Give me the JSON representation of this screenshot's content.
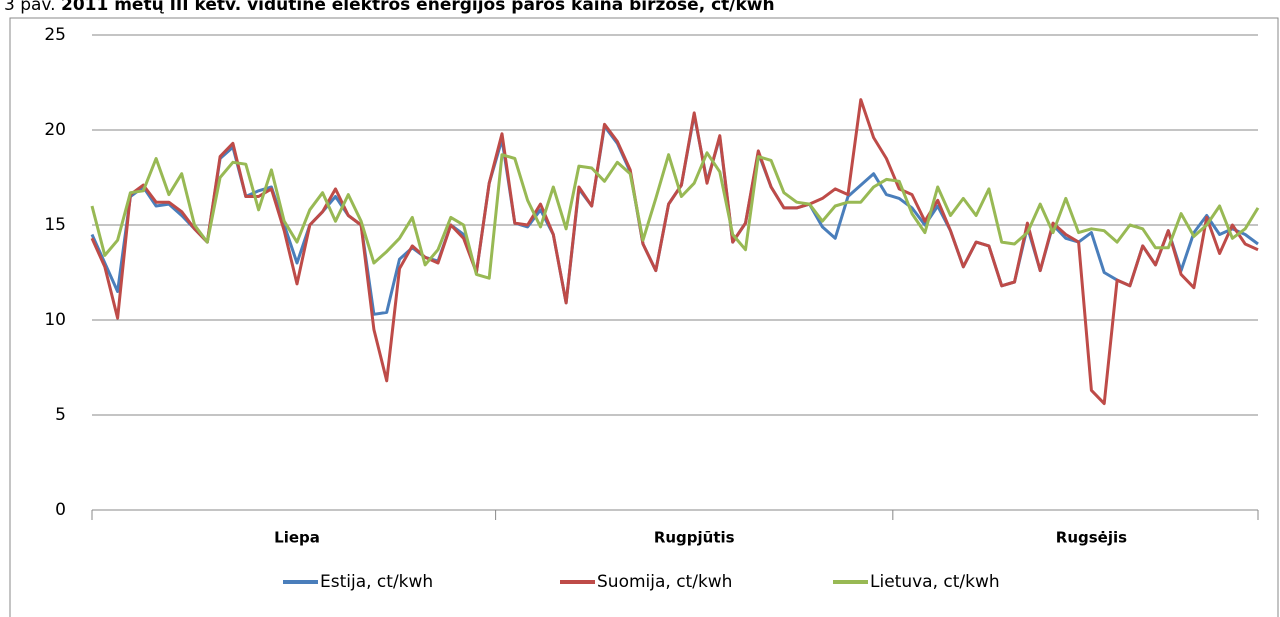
{
  "chart_data": {
    "type": "line",
    "figure_label": "3 pav.",
    "title": "2011 metų III ketv. vidutinė elektros energijos paros kaina biržose, ct/kwh",
    "categories": [
      null,
      null,
      null,
      null,
      null,
      null,
      null,
      null,
      null,
      null,
      null,
      null,
      null,
      null,
      null,
      null,
      "Liepa",
      null,
      null,
      null,
      null,
      null,
      null,
      null,
      null,
      null,
      null,
      null,
      null,
      null,
      null,
      null,
      null,
      null,
      null,
      null,
      null,
      null,
      null,
      null,
      null,
      null,
      null,
      null,
      null,
      null,
      null,
      "Rugpjūtis",
      null,
      null,
      null,
      null,
      null,
      null,
      null,
      null,
      null,
      null,
      null,
      null,
      null,
      null,
      null,
      null,
      null,
      null,
      null,
      null,
      null,
      null,
      null,
      null,
      null,
      null,
      null,
      null,
      null,
      null,
      "Rugsėjis",
      null,
      null,
      null,
      null,
      null,
      null,
      null,
      null,
      null,
      null,
      null,
      null,
      null
    ],
    "series": [
      {
        "name": "Estija, ct/kwh",
        "color": "#4a7ebb",
        "values": [
          14.5,
          13,
          11.5,
          16.5,
          17,
          16,
          16.1,
          15.5,
          14.8,
          14.1,
          18.5,
          19.1,
          16.5,
          16.8,
          17,
          15,
          13,
          15,
          15.7,
          16.5,
          15.5,
          15,
          10.3,
          10.4,
          13.2,
          13.8,
          13.3,
          13.1,
          15,
          14.5,
          12.5,
          17.2,
          19.5,
          15.1,
          14.9,
          15.8,
          14.5,
          10.9,
          16.9,
          16,
          20.2,
          19.3,
          17.8,
          14,
          12.6,
          16.1,
          17.1,
          20.8,
          17.3,
          19.6,
          14.1,
          15.1,
          18.8,
          17,
          15.9,
          15.9,
          16.1,
          14.9,
          14.3,
          16.5,
          17.1,
          17.7,
          16.6,
          16.4,
          15.9,
          15,
          16,
          14.7,
          12.8,
          14.1,
          13.9,
          11.8,
          12,
          14.9,
          12.6,
          15,
          14.3,
          14.1,
          14.6,
          12.5,
          12.1,
          11.8,
          13.9,
          12.9,
          14.7,
          12.6,
          14.6,
          15.5,
          14.5,
          14.8,
          14.5,
          14
        ]
      },
      {
        "name": "Suomija, ct/kwh",
        "color": "#be4b48",
        "values": [
          14.3,
          12.8,
          10.1,
          16.6,
          17.1,
          16.2,
          16.2,
          15.7,
          14.8,
          14.1,
          18.6,
          19.3,
          16.5,
          16.5,
          16.9,
          14.7,
          11.9,
          15,
          15.7,
          16.9,
          15.5,
          15,
          9.5,
          6.8,
          12.7,
          13.9,
          13.3,
          13,
          15,
          14.3,
          12.5,
          17.2,
          19.8,
          15.1,
          15,
          16.1,
          14.5,
          10.9,
          17,
          16,
          20.3,
          19.4,
          17.9,
          14,
          12.6,
          16.1,
          17.1,
          20.9,
          17.2,
          19.7,
          14.1,
          15.1,
          18.9,
          17,
          15.9,
          15.9,
          16.1,
          16.4,
          16.9,
          16.6,
          21.6,
          19.6,
          18.5,
          16.9,
          16.6,
          15.2,
          16.3,
          14.7,
          12.8,
          14.1,
          13.9,
          11.8,
          12,
          15.1,
          12.6,
          15.1,
          14.5,
          14.1,
          6.3,
          5.6,
          12.1,
          11.8,
          13.9,
          12.9,
          14.7,
          12.4,
          11.7,
          15.4,
          13.5,
          15,
          14,
          13.7
        ]
      },
      {
        "name": "Lietuva, ct/kwh",
        "color": "#98b954",
        "values": [
          16,
          13.4,
          14.2,
          16.7,
          16.8,
          18.5,
          16.6,
          17.7,
          15,
          14.1,
          17.5,
          18.3,
          18.2,
          15.8,
          17.9,
          15.2,
          14.1,
          15.8,
          16.7,
          15.2,
          16.6,
          15.2,
          13,
          13.6,
          14.3,
          15.4,
          12.9,
          13.7,
          15.4,
          15,
          12.4,
          12.2,
          18.7,
          18.5,
          16.3,
          14.9,
          17,
          14.8,
          18.1,
          18,
          17.3,
          18.3,
          17.7,
          14.2,
          16.4,
          18.7,
          16.5,
          17.2,
          18.8,
          17.8,
          14.5,
          13.7,
          18.6,
          18.4,
          16.7,
          16.2,
          16.1,
          15.2,
          16,
          16.2,
          16.2,
          17,
          17.4,
          17.3,
          15.6,
          14.6,
          17,
          15.5,
          16.4,
          15.5,
          16.9,
          14.1,
          14,
          14.6,
          16.1,
          14.6,
          16.4,
          14.6,
          14.8,
          14.7,
          14.1,
          15,
          14.8,
          13.8,
          13.8,
          15.6,
          14.4,
          15,
          16,
          14.3,
          14.8,
          15.9
        ]
      }
    ],
    "ylim": [
      0,
      25
    ],
    "yticks": [
      0,
      5,
      10,
      15,
      20,
      25
    ],
    "grid": true,
    "legend": "bottom"
  }
}
